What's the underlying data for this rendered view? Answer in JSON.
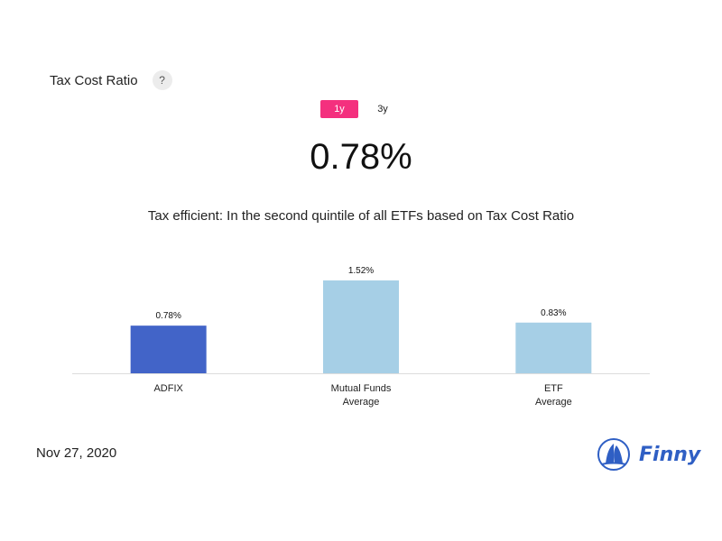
{
  "header": {
    "title": "Tax Cost Ratio",
    "help_label": "?"
  },
  "period_tabs": [
    {
      "label": "1y",
      "active": true
    },
    {
      "label": "3y",
      "active": false
    }
  ],
  "main_value": "0.78%",
  "subtitle": "Tax efficient: In the second quintile of all ETFs based on Tax Cost Ratio",
  "chart_data": {
    "type": "bar",
    "title": "",
    "categories": [
      "ADFIX",
      "Mutual Funds Average",
      "ETF Average"
    ],
    "category_lines": [
      [
        "ADFIX"
      ],
      [
        "Mutual Funds",
        "Average"
      ],
      [
        "ETF",
        "Average"
      ]
    ],
    "values": [
      0.78,
      1.52,
      0.83
    ],
    "value_labels": [
      "0.78%",
      "1.52%",
      "0.83%"
    ],
    "colors": [
      "#4264c8",
      "#a6cfe6",
      "#a6cfe6"
    ],
    "xlabel": "",
    "ylabel": "",
    "ylim": [
      0,
      1.55
    ],
    "grid": false
  },
  "footer": {
    "date": "Nov 27, 2020",
    "brand": "Finny"
  },
  "brand_color": "#2f5fc4"
}
